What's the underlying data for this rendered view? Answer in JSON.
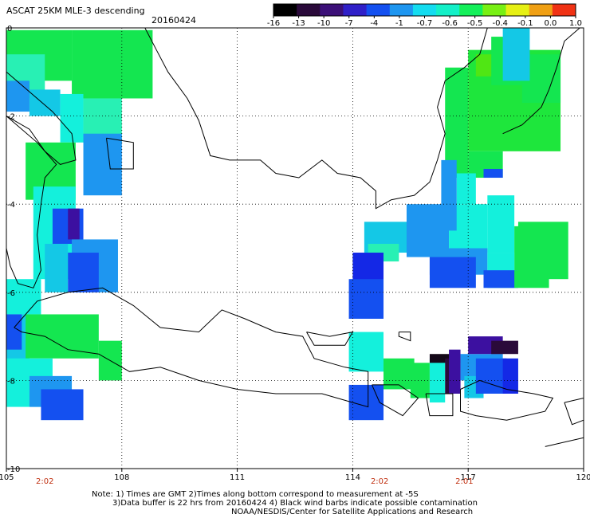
{
  "header": {
    "title": "ASCAT 25KM MLE-3 descending",
    "date": "20160424"
  },
  "colorbar": {
    "labels": [
      "-16",
      "-13",
      "-10",
      "-7",
      "-4",
      "-1",
      "-0.7",
      "-0.6",
      "-0.5",
      "-0.4",
      "-0.1",
      "0.0",
      "1.0"
    ],
    "colors": [
      "#000000",
      "#2a0a3a",
      "#3c1078",
      "#3020c8",
      "#1450f0",
      "#1e96f0",
      "#14dcf0",
      "#14f0c8",
      "#14f05a",
      "#78f014",
      "#e6f014",
      "#f0a014",
      "#f03214"
    ]
  },
  "axes": {
    "x_ticks": [
      "105",
      "108",
      "111",
      "114",
      "117",
      "120"
    ],
    "y_ticks": [
      "0",
      "-2",
      "-4",
      "-6",
      "-8",
      "-10"
    ],
    "lon_range": [
      105,
      120
    ],
    "lat_range": [
      -10,
      0
    ]
  },
  "pass_times": [
    {
      "label": "2:02",
      "lon": 106
    },
    {
      "label": "2:02",
      "lon": 114.7
    },
    {
      "label": "2:01",
      "lon": 116.9
    }
  ],
  "notes": {
    "line1": "Note: 1) Times are GMT 2)Times along bottom correspond to measurement at -5S",
    "line2": "3)Data buffer is 22 hrs from 20160424 4) Black wind barbs indicate possible contamination",
    "line3": "NOAA/NESDIS/Center for Satellite Applications and Research"
  }
}
